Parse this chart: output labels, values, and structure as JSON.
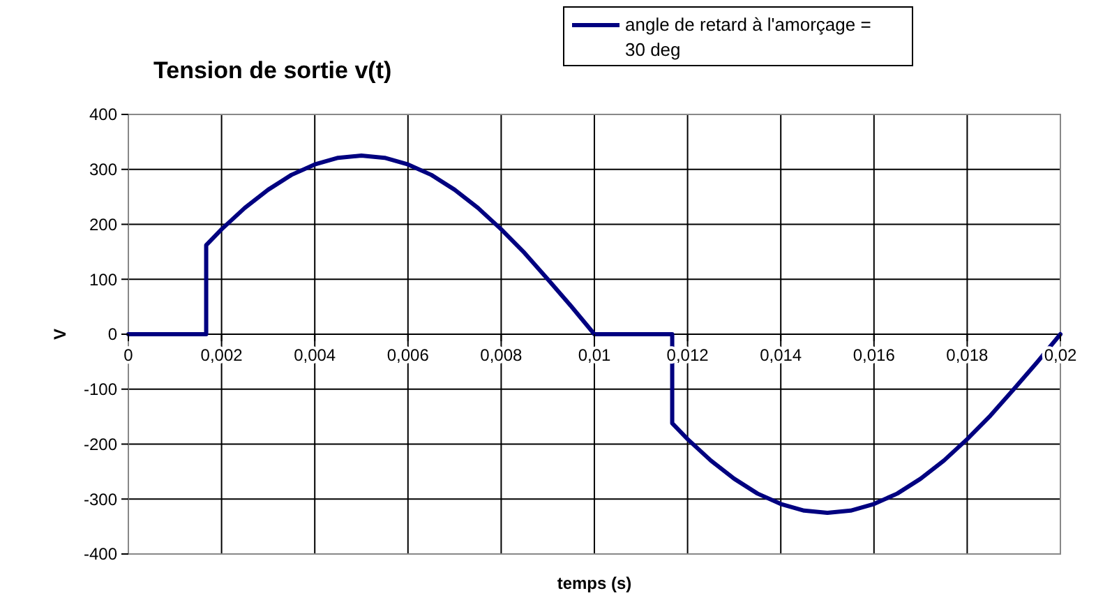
{
  "chart_data": {
    "type": "line",
    "title": "Tension de sortie v(t)",
    "xlabel": "temps (s)",
    "ylabel": "V",
    "x": [
      0,
      0.00167,
      0.00167,
      0.002,
      0.0025,
      0.003,
      0.0035,
      0.004,
      0.0045,
      0.005,
      0.0055,
      0.006,
      0.0065,
      0.007,
      0.0075,
      0.008,
      0.0085,
      0.009,
      0.0095,
      0.01,
      0.01167,
      0.01167,
      0.012,
      0.0125,
      0.013,
      0.0135,
      0.014,
      0.0145,
      0.015,
      0.0155,
      0.016,
      0.0165,
      0.017,
      0.0175,
      0.018,
      0.0185,
      0.019,
      0.0195,
      0.02
    ],
    "series": [
      {
        "name": "angle de retard à l'amorçage = 30 deg",
        "color": "#000080",
        "values": [
          0,
          0,
          162,
          191,
          230,
          263,
          290,
          309,
          321,
          325,
          321,
          309,
          290,
          263,
          230,
          191,
          148,
          100,
          51,
          0,
          0,
          -162,
          -191,
          -230,
          -263,
          -290,
          -309,
          -321,
          -325,
          -321,
          -309,
          -290,
          -263,
          -230,
          -191,
          -148,
          -100,
          -51,
          0
        ]
      }
    ],
    "xlim": [
      0,
      0.02
    ],
    "ylim": [
      -400,
      400
    ],
    "xticks": [
      0,
      {
        "value": 0.002,
        "label": "0,002"
      },
      {
        "value": 0.004,
        "label": "0,004"
      },
      {
        "value": 0.006,
        "label": "0,006"
      },
      {
        "value": 0.008,
        "label": "0,008"
      },
      {
        "value": 0.01,
        "label": "0,01"
      },
      {
        "value": 0.012,
        "label": "0,012"
      },
      {
        "value": 0.014,
        "label": "0,014"
      },
      {
        "value": 0.016,
        "label": "0,016"
      },
      {
        "value": 0.018,
        "label": "0,018"
      },
      {
        "value": 0.02,
        "label": "0,02"
      }
    ],
    "yticks": [
      -400,
      -300,
      -200,
      -100,
      0,
      100,
      200,
      300,
      400
    ],
    "grid": true,
    "legend": "top right",
    "marker": "none",
    "line_style": "solid"
  }
}
